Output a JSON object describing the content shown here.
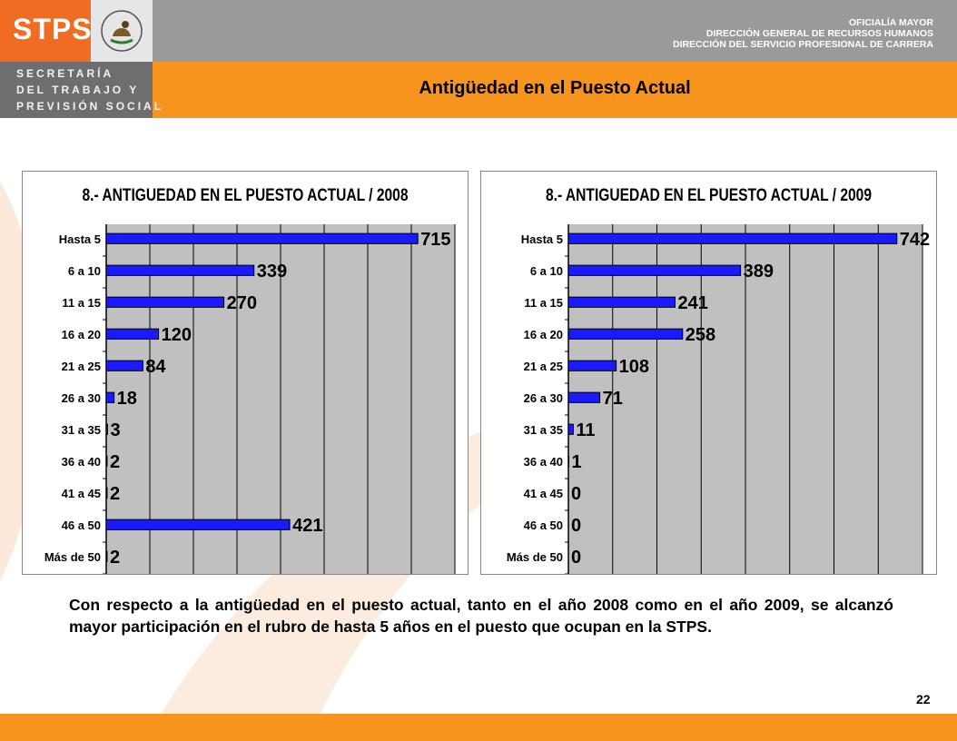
{
  "header": {
    "logo_text": "STPS",
    "secretaria_lines": [
      "SECRETARÍA",
      "DEL TRABAJO Y",
      "PREVISIÓN SOCIAL"
    ],
    "dept_lines": [
      "OFICIALÍA MAYOR",
      "DIRECCIÓN GENERAL DE RECURSOS HUMANOS",
      "DIRECCIÓN DEL SERVICIO PROFESIONAL DE CARRERA"
    ],
    "title": "Antigüedad  en el Puesto Actual"
  },
  "colors": {
    "bar_fill": "#1a1aff",
    "plot_area": "#c0c0c0",
    "header_orange": "#f7941d",
    "header_gray": "#9a9a9a",
    "logo_orange": "#ef6c22"
  },
  "chart_data": [
    {
      "type": "bar",
      "orientation": "horizontal",
      "title": "8.- ANTIGUEDAD  EN  EL  PUESTO ACTUAL / 2008",
      "categories": [
        "Hasta 5",
        "6 a 10",
        "11 a 15",
        "16 a 20",
        "21 a 25",
        "26 a 30",
        "31 a 35",
        "36 a 40",
        "41 a 45",
        "46 a 50",
        "Más de 50"
      ],
      "values": [
        715,
        339,
        270,
        120,
        84,
        18,
        3,
        2,
        2,
        421,
        2
      ],
      "xlim": [
        0,
        800
      ],
      "grid": true,
      "legend": "none"
    },
    {
      "type": "bar",
      "orientation": "horizontal",
      "title": "8.- ANTIGUEDAD  EN  EL  PUESTO  ACTUAL  /  2009",
      "categories": [
        "Hasta 5",
        "6 a 10",
        "11 a 15",
        "16 a 20",
        "21 a 25",
        "26 a 30",
        "31 a 35",
        "36 a 40",
        "41 a 45",
        "46 a 50",
        "Más de 50"
      ],
      "values": [
        742,
        389,
        241,
        258,
        108,
        71,
        11,
        1,
        0,
        0,
        0
      ],
      "xlim": [
        0,
        800
      ],
      "grid": true,
      "legend": "none"
    }
  ],
  "body_text": "Con respecto a la antigüedad en el puesto actual, tanto en el año 2008 como en el año 2009, se alcanzó mayor participación en el rubro de hasta 5 años en el puesto que ocupan en la STPS.",
  "page_number": "22"
}
